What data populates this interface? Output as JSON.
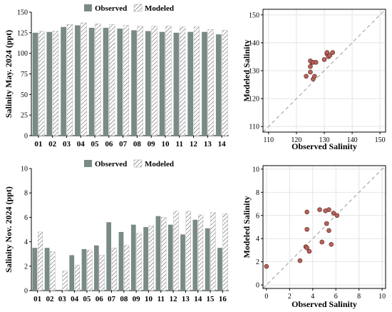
{
  "colors": {
    "observed": "#7a8a87",
    "modeled_hatch": "#4a4a4a",
    "point": "#b5605a",
    "point_edge": "#5a2a25",
    "diagonal": "#9a9a9a",
    "grid": "#e4e4e4"
  },
  "chart_data": [
    {
      "type": "bar",
      "ylabel": "Salinity May. 2024 (ppt)",
      "xlabel": "",
      "ylim": [
        0,
        150
      ],
      "yticks": [
        0,
        25,
        50,
        75,
        100,
        125,
        150
      ],
      "legend": "top-center",
      "categories": [
        "01",
        "02",
        "03",
        "04",
        "05",
        "06",
        "07",
        "08",
        "09",
        "10",
        "11",
        "12",
        "13",
        "14"
      ],
      "series": [
        {
          "name": "Observed",
          "values": [
            125,
            126,
            132,
            134,
            131,
            131,
            130,
            128,
            127,
            126,
            125,
            126,
            126,
            123
          ]
        },
        {
          "name": "Modeled",
          "values": [
            127,
            127,
            135,
            137,
            136,
            135,
            134,
            133,
            133,
            133,
            132,
            132,
            129,
            128
          ]
        }
      ]
    },
    {
      "type": "scatter",
      "xlabel": "Observed Salinity",
      "ylabel": "Modeled Salinity",
      "xlim": [
        108,
        152
      ],
      "ylim": [
        108,
        152
      ],
      "xticks": [
        110,
        120,
        130,
        140,
        150
      ],
      "yticks": [
        110,
        120,
        130,
        140,
        150
      ],
      "grid": true,
      "diagonal": true,
      "points": [
        [
          123.5,
          128
        ],
        [
          125,
          129.5
        ],
        [
          125,
          131.5
        ],
        [
          125.5,
          133
        ],
        [
          125,
          133.5
        ],
        [
          126,
          133
        ],
        [
          126,
          127
        ],
        [
          126.5,
          128
        ],
        [
          127,
          133
        ],
        [
          130,
          134
        ],
        [
          131,
          136
        ],
        [
          131,
          136.5
        ],
        [
          131.5,
          135
        ],
        [
          132,
          135.5
        ],
        [
          133,
          136.5
        ]
      ]
    },
    {
      "type": "bar",
      "ylabel": "Salinity Nov. 2024 (ppt)",
      "xlabel": "",
      "ylim": [
        0,
        10
      ],
      "yticks": [
        0,
        2,
        4,
        6,
        8,
        10
      ],
      "legend": "top-center",
      "categories": [
        "01",
        "02",
        "03",
        "04",
        "05",
        "06",
        "07",
        "08",
        "09",
        "10",
        "11",
        "12",
        "13",
        "14",
        "15",
        "16"
      ],
      "series": [
        {
          "name": "Observed",
          "values": [
            3.5,
            3.5,
            0.0,
            2.9,
            3.4,
            3.7,
            5.6,
            4.8,
            5.4,
            5.2,
            6.1,
            5.4,
            4.6,
            5.8,
            5.1,
            3.5
          ]
        },
        {
          "name": "Modeled",
          "values": [
            4.8,
            3.2,
            1.6,
            2.1,
            3.3,
            2.9,
            3.5,
            3.7,
            4.7,
            5.3,
            6.0,
            6.5,
            6.5,
            6.2,
            6.4,
            6.3
          ]
        }
      ]
    },
    {
      "type": "scatter",
      "xlabel": "Observed Salinity",
      "ylabel": "Modeled Salinity",
      "xlim": [
        -0.3,
        10.3
      ],
      "ylim": [
        -0.3,
        10.3
      ],
      "xticks": [
        0,
        2,
        4,
        6,
        8,
        10
      ],
      "yticks": [
        0,
        2,
        4,
        6,
        8,
        10
      ],
      "grid": true,
      "diagonal": true,
      "points": [
        [
          0.0,
          1.6
        ],
        [
          2.9,
          2.1
        ],
        [
          3.4,
          3.3
        ],
        [
          3.5,
          3.2
        ],
        [
          3.7,
          2.9
        ],
        [
          3.5,
          4.8
        ],
        [
          3.5,
          6.3
        ],
        [
          4.6,
          6.5
        ],
        [
          4.8,
          3.7
        ],
        [
          5.1,
          6.4
        ],
        [
          5.2,
          5.3
        ],
        [
          5.4,
          6.5
        ],
        [
          5.4,
          4.7
        ],
        [
          5.6,
          3.5
        ],
        [
          5.8,
          6.2
        ],
        [
          6.1,
          6.0
        ]
      ]
    }
  ]
}
